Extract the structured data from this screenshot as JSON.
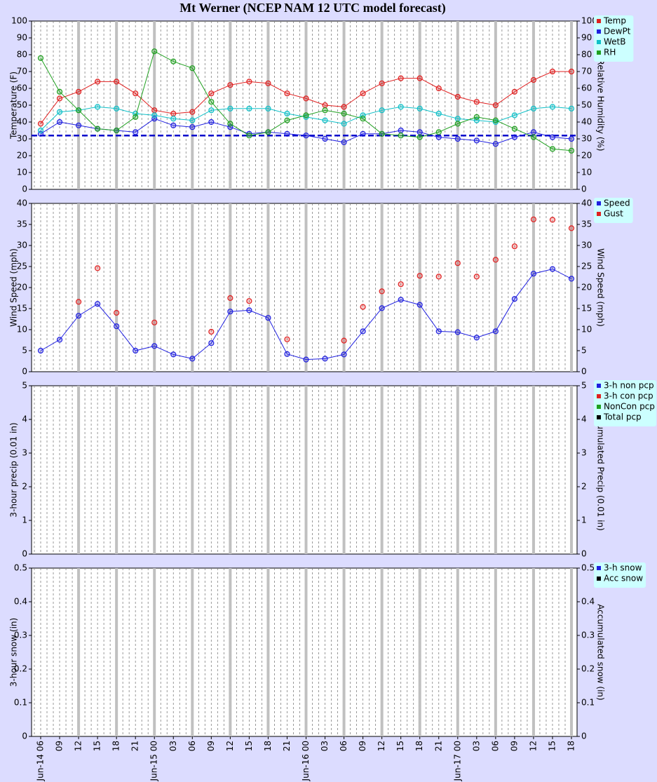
{
  "title": "Mt Werner (NCEP NAM 12 UTC model forecast)",
  "chart_data": [
    {
      "type": "line",
      "ylabel": "Temperature (F)",
      "y2label": "Relative Humidity (%)",
      "ylim": [
        0,
        100
      ],
      "yticks": [
        0,
        10,
        20,
        30,
        40,
        50,
        60,
        70,
        80,
        90,
        100
      ],
      "y2lim": [
        0,
        100
      ],
      "y2ticks": [
        0,
        10,
        20,
        30,
        40,
        50,
        60,
        70,
        80,
        90,
        100
      ],
      "reference_line": 32,
      "reference_color": "#0000cc",
      "series": [
        {
          "name": "Temp",
          "color": "#e02020",
          "mode": "lines+markers",
          "values": [
            39,
            54,
            58,
            64,
            64,
            57,
            47,
            45,
            46,
            57,
            62,
            64,
            63,
            57,
            54,
            50,
            49,
            57,
            63,
            66,
            66,
            60,
            55,
            52,
            50,
            58,
            65,
            70,
            70
          ]
        },
        {
          "name": "DewPt",
          "color": "#2020e0",
          "mode": "lines+markers",
          "values": [
            33,
            40,
            38,
            36,
            35,
            34,
            42,
            38,
            37,
            40,
            37,
            33,
            34,
            33,
            32,
            30,
            28,
            33,
            33,
            35,
            34,
            31,
            30,
            29,
            27,
            31,
            34,
            31,
            30
          ]
        },
        {
          "name": "WetB",
          "color": "#10c0c8",
          "mode": "lines+markers",
          "values": [
            35,
            46,
            47,
            49,
            48,
            45,
            44,
            42,
            41,
            47,
            48,
            48,
            48,
            45,
            43,
            41,
            39,
            44,
            47,
            49,
            48,
            45,
            42,
            41,
            40,
            44,
            48,
            49,
            48
          ]
        },
        {
          "name": "RH",
          "color": "#20a020",
          "mode": "lines+markers",
          "axis": "y2",
          "values": [
            78,
            58,
            47,
            36,
            35,
            43,
            82,
            76,
            72,
            52,
            39,
            32,
            34,
            41,
            44,
            47,
            45,
            42,
            33,
            32,
            31,
            34,
            39,
            43,
            41,
            36,
            31,
            24,
            23
          ]
        }
      ]
    },
    {
      "type": "line",
      "ylabel": "Wind Speed (mph)",
      "y2label": "Wind Speed (mph)",
      "ylim": [
        0,
        40
      ],
      "yticks": [
        0,
        5,
        10,
        15,
        20,
        25,
        30,
        35,
        40
      ],
      "y2lim": [
        0,
        40
      ],
      "y2ticks": [
        0,
        5,
        10,
        15,
        20,
        25,
        30,
        35,
        40
      ],
      "series": [
        {
          "name": "Speed",
          "color": "#2020e0",
          "mode": "lines+markers",
          "values": [
            5,
            7.6,
            13.3,
            16.1,
            10.8,
            5,
            6.1,
            4.1,
            3.1,
            6.8,
            14.3,
            14.6,
            12.8,
            4.2,
            2.9,
            3.1,
            4.1,
            9.6,
            15.1,
            17.1,
            15.9,
            9.6,
            9.4,
            8.1,
            9.6,
            17.3,
            23.3,
            24.4,
            22.1
          ]
        },
        {
          "name": "Gust",
          "color": "#e02020",
          "mode": "markers",
          "values": [
            null,
            null,
            16.6,
            24.6,
            14,
            null,
            11.7,
            null,
            null,
            9.5,
            17.5,
            16.8,
            null,
            7.7,
            null,
            null,
            7.4,
            15.4,
            19.1,
            20.8,
            22.8,
            22.6,
            25.8,
            22.6,
            26.6,
            29.8,
            36.2,
            36.1,
            34.1
          ]
        }
      ]
    },
    {
      "type": "line",
      "ylabel": "3-hour precip (0.01 in)",
      "y2label": "Accumulated Precip (0.01 in)",
      "ylim": [
        0,
        5
      ],
      "yticks": [
        0,
        1,
        2,
        3,
        4,
        5
      ],
      "y2lim": [
        0,
        5
      ],
      "y2ticks": [
        0,
        1,
        2,
        3,
        4,
        5
      ],
      "series": [
        {
          "name": "3-h non pcp",
          "color": "#2020e0"
        },
        {
          "name": "3-h con pcp",
          "color": "#e02020"
        },
        {
          "name": "NonCon pcp",
          "color": "#20a020"
        },
        {
          "name": "Total pcp",
          "color": "#000000"
        }
      ]
    },
    {
      "type": "line",
      "ylabel": "3-hour snow (in)",
      "y2label": "Accumulated snow (in)",
      "ylim": [
        0,
        0.5
      ],
      "yticks": [
        0,
        0.1,
        0.2,
        0.3,
        0.4,
        0.5
      ],
      "y2lim": [
        0,
        0.5
      ],
      "y2ticks": [
        0,
        0.1,
        0.2,
        0.3,
        0.4,
        0.5
      ],
      "categories": [
        "Jun-14 06",
        "09",
        "12",
        "15",
        "18",
        "21",
        "Jun-15 00",
        "03",
        "06",
        "09",
        "12",
        "15",
        "18",
        "21",
        "Jun-16 00",
        "03",
        "06",
        "09",
        "12",
        "15",
        "18",
        "21",
        "Jun-17 00",
        "03",
        "06",
        "09",
        "12",
        "15",
        "18"
      ],
      "series": [
        {
          "name": "3-h snow",
          "color": "#2020e0"
        },
        {
          "name": "Acc snow",
          "color": "#000000"
        }
      ]
    }
  ]
}
